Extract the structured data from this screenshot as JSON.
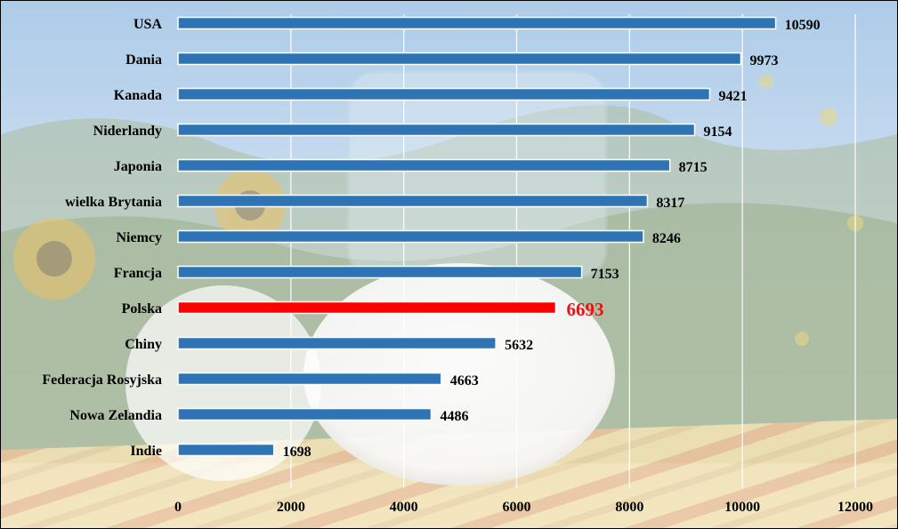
{
  "chart_data": {
    "type": "bar",
    "orientation": "horizontal",
    "categories": [
      "USA",
      "Dania",
      "Kanada",
      "Niderlandy",
      "Japonia",
      "wielka Brytania",
      "Niemcy",
      "Francja",
      "Polska",
      "Chiny",
      "Federacja Rosyjska",
      "Nowa Zelandia",
      "Indie"
    ],
    "values": [
      10590,
      9973,
      9421,
      9154,
      8715,
      8317,
      8246,
      7153,
      6693,
      5632,
      4663,
      4486,
      1698
    ],
    "value_labels": [
      "10590",
      "9973",
      "9421",
      "9154",
      "8715",
      "8317",
      "8246",
      "7153",
      "6693",
      "5632",
      "4663",
      "4486",
      "1698"
    ],
    "highlight": "Polska",
    "xlim": [
      0,
      12000
    ],
    "x_ticks": [
      0,
      2000,
      4000,
      6000,
      8000,
      10000,
      12000
    ],
    "x_tick_labels": [
      "0",
      "2000",
      "4000",
      "6000",
      "8000",
      "10000",
      "12000"
    ],
    "grid": "vertical",
    "background": "photo-of-milk-jug-and-sunflowers",
    "colors": {
      "bar": "#2e74b5",
      "bar_highlight": "#ff0000",
      "highlight_label": "#ee1111",
      "grid": "#ffffff"
    }
  }
}
